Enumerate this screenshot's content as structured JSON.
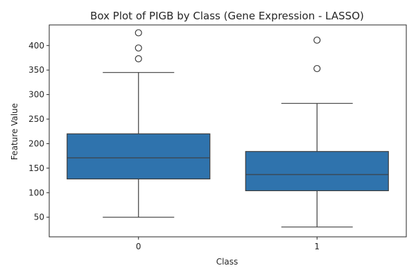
{
  "chart_data": {
    "type": "box",
    "title": "Box Plot of PIGB by Class (Gene Expression - LASSO)",
    "xlabel": "Class",
    "ylabel": "Feature Value",
    "ylim": [
      10,
      442
    ],
    "yticks": [
      50,
      100,
      150,
      200,
      250,
      300,
      350,
      400
    ],
    "categories": [
      "0",
      "1"
    ],
    "boxes": [
      {
        "category": "0",
        "whisker_low": 50,
        "q1": 128,
        "median": 171,
        "q3": 220,
        "whisker_high": 345,
        "outliers": [
          426,
          395,
          373
        ]
      },
      {
        "category": "1",
        "whisker_low": 30,
        "q1": 104,
        "median": 137,
        "q3": 184,
        "whisker_high": 282,
        "outliers": [
          411,
          353
        ]
      }
    ],
    "box_color": "#2f73ad",
    "line_color": "#3d3d3d",
    "grid": false,
    "legend": "none"
  }
}
